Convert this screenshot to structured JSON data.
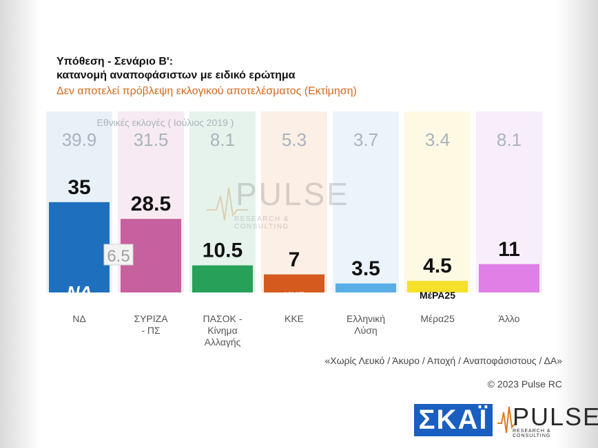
{
  "title_line1": "Υπόθεση - Σενάριο Β':",
  "title_line2": "κατανομή αναποφάσιστων με ειδικό ερώτημα",
  "subtitle": "Δεν αποτελεί πρόβλεψη εκλογικού αποτελέσματος   (Εκτίμηση)",
  "watermark": {
    "name": "PULSE",
    "sub": "RESEARCH & CONSULTING"
  },
  "chart_data": {
    "type": "bar",
    "categories": [
      "ΝΔ",
      "ΣΥΡΙΖΑ - ΠΣ",
      "ΠΑΣΟΚ - Κίνημα Αλλαγής",
      "ΚΚΕ",
      "Ελληνική Λύση",
      "Μέρα25",
      "Άλλο"
    ],
    "category_lines": [
      [
        "ΝΔ"
      ],
      [
        "ΣΥΡΙΖΑ",
        "- ΠΣ"
      ],
      [
        "ΠΑΣΟΚ -",
        "Κίνημα",
        "Αλλαγής"
      ],
      [
        "ΚΚΕ"
      ],
      [
        "Ελληνική",
        "Λύση"
      ],
      [
        "Μέρα25"
      ],
      [
        "Άλλο"
      ]
    ],
    "series": [
      {
        "name": "",
        "values": [
          35,
          28.5,
          10.5,
          7,
          3.5,
          4.5,
          11
        ]
      },
      {
        "name": "Εθνικές εκλογές  ( Ιούλιος 2019 )",
        "values": [
          39.9,
          31.5,
          8.1,
          5.3,
          3.7,
          3.4,
          8.1
        ]
      }
    ],
    "annotations": [
      {
        "category": "ΝΔ",
        "text": "6.5"
      }
    ],
    "bar_colors": [
      "#1f6fbf",
      "#c7609e",
      "#27a05a",
      "#d45a1e",
      "#5aaee6",
      "#f5e02a",
      "#e07fe6"
    ],
    "bg_colors": [
      "#e9f1f8",
      "#f7eaf2",
      "#e6f3ec",
      "#fbefe6",
      "#ebf4fb",
      "#fdf9e3",
      "#f8eefb"
    ],
    "logo_texts": [
      "ΝΔ",
      "",
      "",
      "ΚΚΕ",
      "",
      "ΜέΡΑ25",
      ""
    ],
    "ylim": [
      0,
      45
    ],
    "grid": false
  },
  "footer": {
    "note": "«Χωρίς Λευκό / Άκυρο / Αποχή / Αναποφάσιστους / ΔΑ»",
    "copyright": "© 2023 Pulse RC",
    "skai_logo": "ΣΚΑΪ",
    "pulse_logo": "PULSE",
    "pulse_logo_sub": "RESEARCH & CONSULTING"
  }
}
